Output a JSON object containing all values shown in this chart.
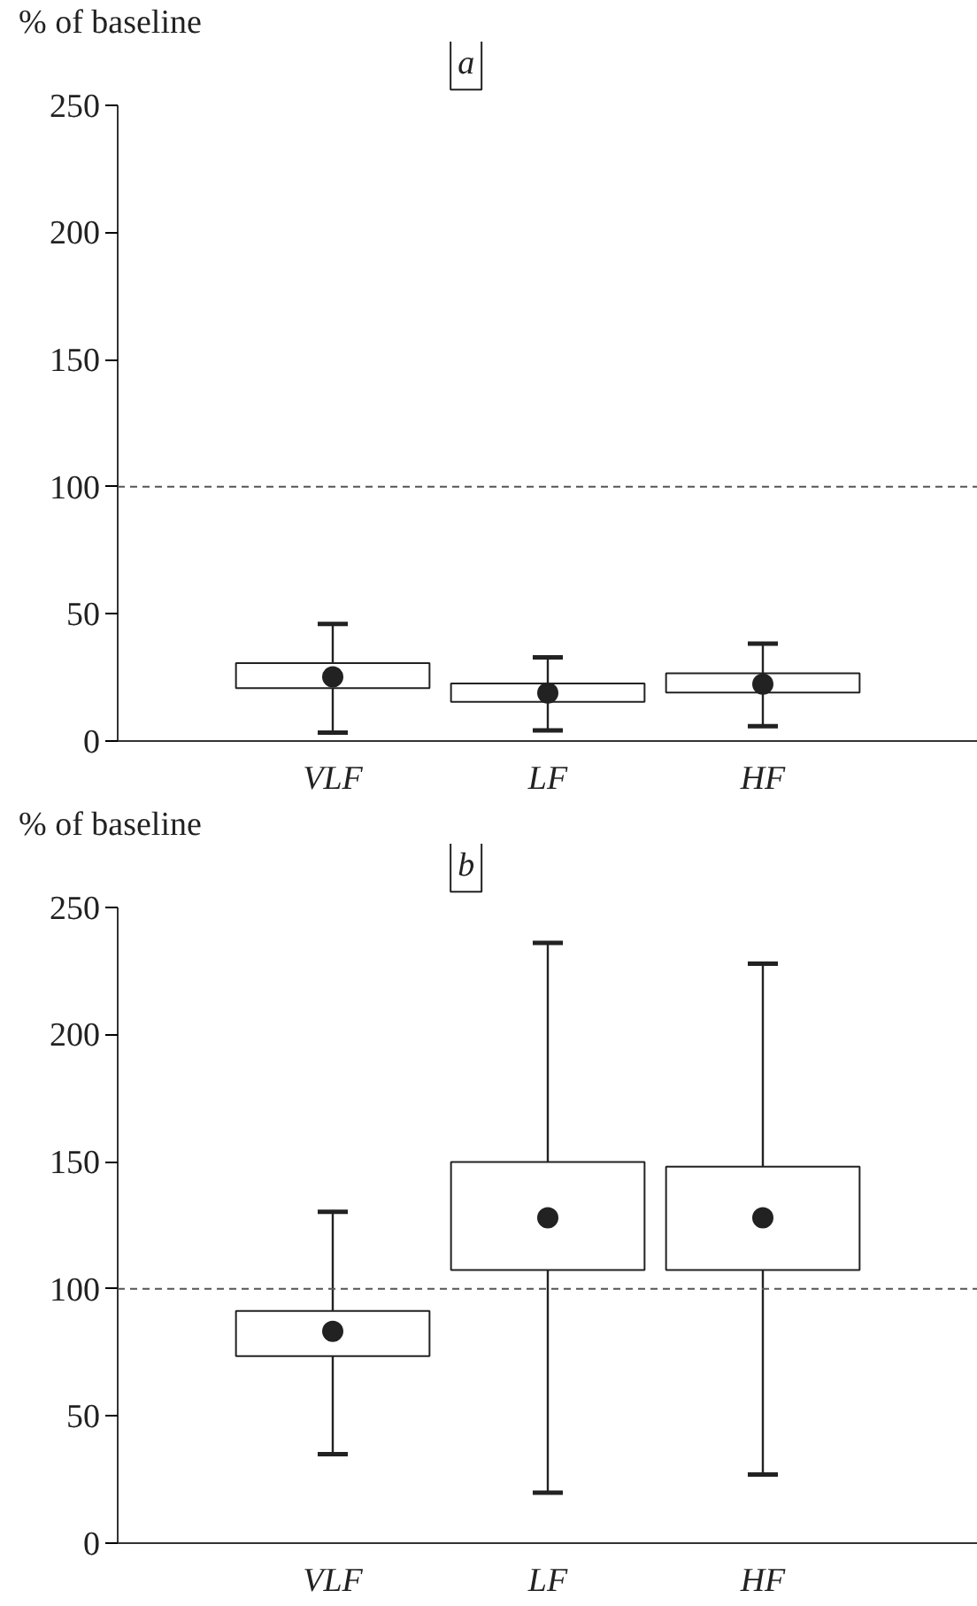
{
  "chart_data": [
    {
      "type": "box",
      "title": "a",
      "ylabel": "% of baseline",
      "categories": [
        "VLF",
        "LF",
        "HF"
      ],
      "boxes": [
        {
          "low": 3.3,
          "q1": 20.8,
          "median": 25.2,
          "q3": 30.6,
          "high": 46
        },
        {
          "low": 4.2,
          "q1": 15.4,
          "median": 18.9,
          "q3": 22.6,
          "high": 32.9
        },
        {
          "low": 5.8,
          "q1": 19.1,
          "median": 22.4,
          "q3": 26.6,
          "high": 38.3
        }
      ],
      "ylim": [
        0,
        250
      ],
      "yticks": [
        0,
        50,
        100,
        150,
        200,
        250
      ],
      "grid": false,
      "ref_lines": [
        {
          "axis": "y",
          "value": 100,
          "line_style": "dashed",
          "color": "#555555"
        }
      ]
    },
    {
      "type": "box",
      "title": "b",
      "ylabel": "% of baseline",
      "categories": [
        "VLF",
        "LF",
        "HF"
      ],
      "boxes": [
        {
          "low": 35,
          "q1": 73.5,
          "median": 83.3,
          "q3": 91.3,
          "high": 130.3
        },
        {
          "low": 19.8,
          "q1": 107.4,
          "median": 127.9,
          "q3": 149.9,
          "high": 236
        },
        {
          "low": 27,
          "q1": 107.4,
          "median": 127.9,
          "q3": 148,
          "high": 227.8
        }
      ],
      "ylim": [
        0,
        250
      ],
      "yticks": [
        0,
        50,
        100,
        150,
        200,
        250
      ],
      "grid": false,
      "ref_lines": [
        {
          "axis": "y",
          "value": 100,
          "line_style": "dashed",
          "color": "#555555"
        }
      ]
    }
  ]
}
